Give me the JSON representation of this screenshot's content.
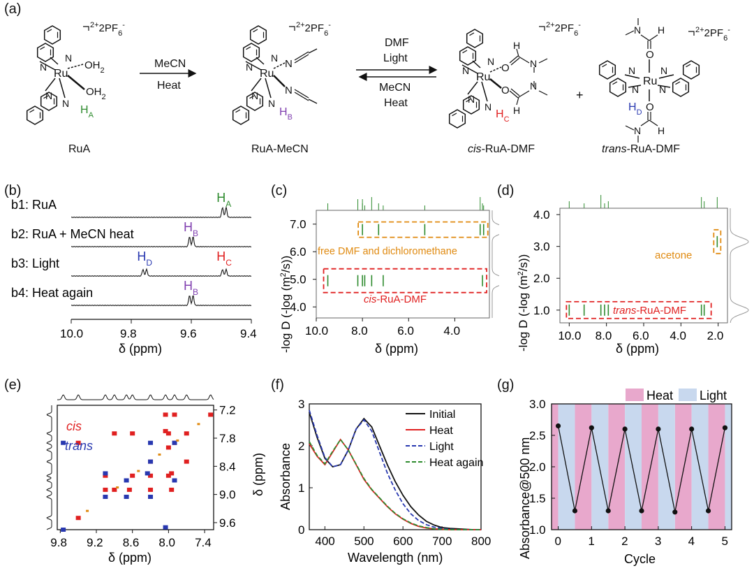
{
  "panel_labels": [
    "(a)",
    "(b)",
    "(c)",
    "(d)",
    "(e)",
    "(f)",
    "(g)"
  ],
  "colors": {
    "green": "#2e8b2e",
    "purple": "#8040b0",
    "red": "#e02020",
    "blue": "#2838b0",
    "orange": "#e08a10",
    "heat_band": "#e8a8cc",
    "light_band": "#c8d8ee",
    "black": "#111111"
  },
  "panel_a": {
    "charge": "2+",
    "counterion": "2PF",
    "counterion_sub": "6",
    "counterion_sup": "-",
    "atom_Ru": "Ru",
    "atom_N": "N",
    "atom_O": "O",
    "atom_H": "H",
    "ligand_OH2": "OH",
    "ligand_OH2_sub": "2",
    "H_labels": {
      "A": "H",
      "A_sub": "A",
      "B": "H",
      "B_sub": "B",
      "C": "H",
      "C_sub": "C",
      "D": "H",
      "D_sub": "D"
    },
    "arrow1_top": "MeCN",
    "arrow1_bottom": "Heat",
    "arrow2_top1": "DMF",
    "arrow2_top2": "Light",
    "arrow2_bottom1": "MeCN",
    "arrow2_bottom2": "Heat",
    "plus": "+",
    "compound_names": {
      "ruA": "RuA",
      "ruA_mecn": "RuA-MeCN",
      "cis_prefix": "cis",
      "cis_rest": "-RuA-DMF",
      "trans_prefix": "trans",
      "trans_rest": "-RuA-DMF"
    }
  },
  "panel_b": {
    "chart_data": {
      "type": "line",
      "title": "",
      "xlabel": "δ (ppm)",
      "xlim": [
        10.0,
        9.4
      ],
      "xticks": [
        "10.0",
        "9.8",
        "9.6",
        "9.4"
      ],
      "traces": [
        {
          "label": "b1: RuA",
          "peaks": [
            {
              "ppm": 9.49,
              "height": 0.9
            }
          ],
          "annotations": [
            {
              "text": "H",
              "sub": "A",
              "color": "green",
              "ppm": 9.49
            }
          ]
        },
        {
          "label": "b2: RuA + MeCN heat",
          "peaks": [
            {
              "ppm": 9.6,
              "height": 0.9
            }
          ],
          "annotations": [
            {
              "text": "H",
              "sub": "B",
              "color": "purple",
              "ppm": 9.6
            }
          ]
        },
        {
          "label": "b3: Light",
          "peaks": [
            {
              "ppm": 9.755,
              "height": 0.6
            },
            {
              "ppm": 9.49,
              "height": 0.6
            }
          ],
          "annotations": [
            {
              "text": "H",
              "sub": "D",
              "color": "blue",
              "ppm": 9.755
            },
            {
              "text": "H",
              "sub": "C",
              "color": "red",
              "ppm": 9.49
            }
          ]
        },
        {
          "label": "b4: Heat again",
          "peaks": [
            {
              "ppm": 9.6,
              "height": 0.9
            }
          ],
          "annotations": [
            {
              "text": "H",
              "sub": "B",
              "color": "purple",
              "ppm": 9.6
            }
          ]
        }
      ]
    }
  },
  "panel_c": {
    "chart_data": {
      "type": "scatter",
      "title": "",
      "xlabel": "δ (ppm)",
      "ylabel": "-log D (-log (m²/s))",
      "ylabel_main": "-log D (-log (m",
      "ylabel_sup": "2",
      "ylabel_tail": "/s))",
      "xlim": [
        10.0,
        2.5
      ],
      "ylim": [
        3.6,
        7.5
      ],
      "xticks": [
        "10.0",
        "8.0",
        "6.0",
        "4.0"
      ],
      "yticks": [
        "4.0",
        "5.0",
        "6.0",
        "7.0"
      ],
      "groups": [
        {
          "name": "free DMF and dichloromethane",
          "color": "orange",
          "D": 6.8,
          "ppm": [
            8.0,
            7.3,
            5.3,
            2.9,
            2.75
          ]
        },
        {
          "name": "cis-RuA-DMF",
          "name_italic": "cis",
          "name_rest": "-RuA-DMF",
          "color": "red",
          "D": 4.95,
          "ppm": [
            9.5,
            8.2,
            8.0,
            7.9,
            7.6,
            7.1,
            2.8
          ]
        }
      ]
    }
  },
  "panel_d": {
    "chart_data": {
      "type": "scatter",
      "title": "",
      "xlabel": "δ (ppm)",
      "ylabel": "-log D (-log (m²/s))",
      "ylabel_main": "-log D (-log (m",
      "ylabel_sup": "2",
      "ylabel_tail": "/s))",
      "xlim": [
        10.5,
        1.5
      ],
      "ylim": [
        0.6,
        4.2
      ],
      "xticks": [
        "10.0",
        "8.0",
        "6.0",
        "4.0",
        "2.0"
      ],
      "yticks": [
        "1.0",
        "2.0",
        "3.0",
        "4.0"
      ],
      "groups": [
        {
          "name": "acetone",
          "color": "orange",
          "D": 3.15,
          "ppm": [
            2.05
          ]
        },
        {
          "name": "trans-RuA-DMF",
          "name_italic": "trans",
          "name_rest": "-RuA-DMF",
          "color": "red",
          "D": 1.0,
          "ppm": [
            10.0,
            9.2,
            8.3,
            8.1,
            7.9,
            2.9,
            2.75
          ]
        }
      ]
    }
  },
  "panel_e": {
    "chart_data": {
      "type": "scatter",
      "title": "",
      "xlabel": "δ (ppm)",
      "ylabel": "δ (ppm)",
      "xlim": [
        9.85,
        7.25
      ],
      "ylim": [
        7.1,
        9.75
      ],
      "xticks": [
        "9.8",
        "9.2",
        "8.6",
        "8.0",
        "7.4"
      ],
      "yticks": [
        "7.2",
        "7.8",
        "8.4",
        "9.0",
        "9.6"
      ],
      "legend": [
        "cis",
        "trans"
      ],
      "series": [
        {
          "name": "cis",
          "color": "red",
          "points": [
            [
              9.5,
              9.5
            ],
            [
              9.5,
              7.9
            ],
            [
              8.9,
              8.9
            ],
            [
              8.9,
              7.7
            ],
            [
              8.6,
              8.6
            ],
            [
              8.6,
              7.7
            ],
            [
              8.3,
              8.3
            ],
            [
              8.3,
              8.9
            ],
            [
              8.0,
              8.0
            ],
            [
              8.0,
              7.7
            ],
            [
              8.0,
              8.6
            ],
            [
              7.9,
              7.9
            ],
            [
              7.9,
              7.3
            ],
            [
              7.7,
              7.7
            ],
            [
              7.7,
              8.3
            ],
            [
              7.3,
              7.3
            ],
            [
              8.05,
              7.3
            ],
            [
              8.05,
              7.65
            ],
            [
              7.95,
              8.55
            ],
            [
              7.95,
              8.9
            ],
            [
              9.05,
              8.6
            ],
            [
              9.05,
              8.9
            ],
            [
              8.65,
              8.9
            ],
            [
              8.3,
              8.6
            ]
          ]
        },
        {
          "name": "trans",
          "color": "blue",
          "points": [
            [
              9.75,
              9.75
            ],
            [
              9.75,
              7.9
            ],
            [
              9.05,
              9.05
            ],
            [
              9.05,
              8.55
            ],
            [
              8.7,
              8.7
            ],
            [
              8.7,
              9.05
            ],
            [
              8.3,
              8.3
            ],
            [
              8.3,
              7.9
            ],
            [
              7.9,
              7.9
            ],
            [
              7.9,
              8.7
            ],
            [
              8.05,
              9.7
            ],
            [
              8.3,
              9.05
            ],
            [
              8.35,
              8.55
            ]
          ]
        },
        {
          "name": "diagonal",
          "color": "orange",
          "points": [
            [
              9.35,
              9.35
            ],
            [
              8.85,
              8.85
            ],
            [
              8.5,
              8.5
            ],
            [
              8.15,
              8.15
            ],
            [
              7.85,
              7.85
            ],
            [
              7.5,
              7.5
            ]
          ]
        }
      ]
    }
  },
  "panel_f": {
    "chart_data": {
      "type": "line",
      "title": "",
      "xlabel": "Wavelength (nm)",
      "ylabel": "Absorbance",
      "xlim": [
        360,
        800
      ],
      "ylim": [
        0,
        3
      ],
      "xticks": [
        "400",
        "500",
        "600",
        "700",
        "800"
      ],
      "yticks": [
        "0",
        "1",
        "2",
        "3"
      ],
      "legend": [
        "Initial",
        "Heat",
        "Light",
        "Heat again"
      ],
      "x": [
        360,
        380,
        400,
        420,
        440,
        460,
        480,
        500,
        520,
        540,
        560,
        580,
        600,
        620,
        640,
        660,
        680,
        700,
        720,
        740,
        760,
        780,
        800
      ],
      "series": [
        {
          "name": "Initial",
          "color": "black",
          "style": "solid",
          "values": [
            2.8,
            2.2,
            1.7,
            1.5,
            1.55,
            1.9,
            2.4,
            2.65,
            2.45,
            2.0,
            1.55,
            1.15,
            0.82,
            0.55,
            0.35,
            0.2,
            0.11,
            0.05,
            0.03,
            0.02,
            0.01,
            0.0,
            0.0
          ]
        },
        {
          "name": "Heat",
          "color": "red",
          "style": "solid",
          "values": [
            2.05,
            1.75,
            1.55,
            1.85,
            2.15,
            1.9,
            1.55,
            1.2,
            0.95,
            0.75,
            0.55,
            0.38,
            0.25,
            0.15,
            0.08,
            0.04,
            0.02,
            0.01,
            0.0,
            0.0,
            0.0,
            0.0,
            0.0
          ]
        },
        {
          "name": "Light",
          "color": "blue",
          "style": "dashed",
          "values": [
            2.85,
            2.25,
            1.72,
            1.5,
            1.55,
            1.9,
            2.4,
            2.62,
            2.35,
            1.85,
            1.35,
            0.95,
            0.62,
            0.38,
            0.22,
            0.12,
            0.06,
            0.03,
            0.01,
            0.0,
            0.0,
            0.0,
            0.0
          ]
        },
        {
          "name": "Heat again",
          "color": "green",
          "style": "dashed",
          "values": [
            2.1,
            1.77,
            1.57,
            1.87,
            2.15,
            1.9,
            1.56,
            1.22,
            0.96,
            0.76,
            0.56,
            0.39,
            0.26,
            0.16,
            0.09,
            0.05,
            0.02,
            0.01,
            0.0,
            0.0,
            0.0,
            0.0,
            0.0
          ]
        }
      ]
    }
  },
  "panel_g": {
    "chart_data": {
      "type": "line",
      "title": "",
      "xlabel": "Cycle",
      "ylabel": "Absorbance@500 nm",
      "xlim": [
        -0.2,
        5.2
      ],
      "ylim": [
        1.0,
        3.0
      ],
      "xticks": [
        "0",
        "1",
        "2",
        "3",
        "4",
        "5"
      ],
      "yticks": [
        "1.0",
        "1.5",
        "2.0",
        "2.5",
        "3.0"
      ],
      "legend": [
        "Heat",
        "Light"
      ],
      "bands": {
        "Heat": [
          [
            -0.2,
            0.0
          ],
          [
            0.5,
            1.0
          ],
          [
            1.5,
            2.0
          ],
          [
            2.5,
            3.0
          ],
          [
            3.5,
            4.0
          ],
          [
            4.5,
            5.0
          ]
        ],
        "Light": [
          [
            0.0,
            0.5
          ],
          [
            1.0,
            1.5
          ],
          [
            2.0,
            2.5
          ],
          [
            3.0,
            3.5
          ],
          [
            4.0,
            4.5
          ],
          [
            5.0,
            5.2
          ]
        ]
      },
      "x": [
        0,
        0.5,
        1,
        1.5,
        2,
        2.5,
        3,
        3.5,
        4,
        4.5,
        5
      ],
      "values": [
        2.65,
        1.3,
        2.62,
        1.3,
        2.6,
        1.3,
        2.6,
        1.28,
        2.6,
        1.3,
        2.62
      ]
    }
  }
}
